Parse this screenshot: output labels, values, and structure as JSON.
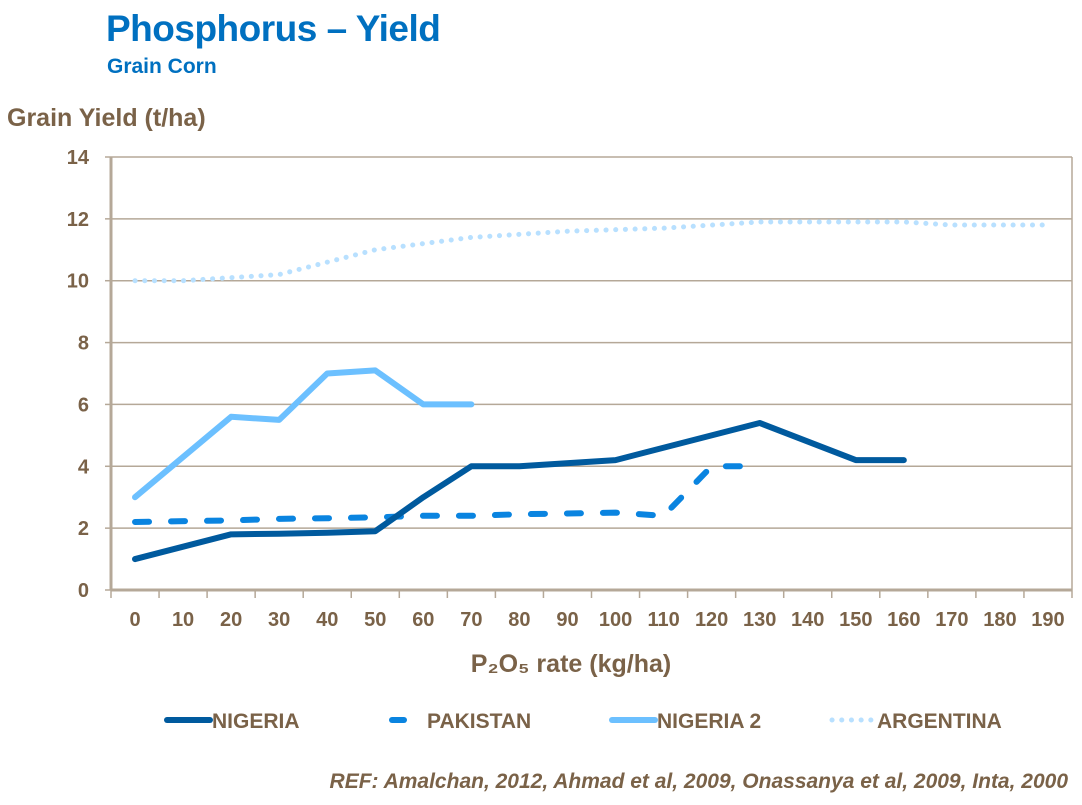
{
  "chart_data": {
    "type": "line",
    "title": "Phosphorus – Yield",
    "subtitle": "Grain Corn",
    "ylabel": "Grain Yield (t/ha)",
    "xlabel": "P₂O₅ rate (kg/ha)",
    "reference": "REF: Amalchan, 2012, Ahmad et al, 2009, Onassanya et al, 2009, Inta, 2000",
    "ylim": [
      0,
      14
    ],
    "yticks": [
      0,
      2,
      4,
      6,
      8,
      10,
      12,
      14
    ],
    "grid": true,
    "legend": "bottom",
    "categories": [
      "0",
      "10",
      "20",
      "30",
      "40",
      "50",
      "60",
      "70",
      "80",
      "90",
      "100",
      "110",
      "120",
      "130",
      "140",
      "150",
      "160",
      "170",
      "180",
      "190"
    ],
    "series": [
      {
        "name": "NIGERIA",
        "color": "#005A9E",
        "style": "solid",
        "values": [
          1.0,
          null,
          1.8,
          1.82,
          1.85,
          1.9,
          3.0,
          4.0,
          4.0,
          null,
          4.2,
          null,
          null,
          5.4,
          null,
          4.2,
          4.2,
          null,
          null,
          null
        ]
      },
      {
        "name": "PAKISTAN",
        "color": "#0A84E0",
        "style": "dashed",
        "values": [
          2.2,
          null,
          2.25,
          2.3,
          2.32,
          2.35,
          2.4,
          2.4,
          2.45,
          null,
          2.5,
          2.4,
          4.0,
          4.0,
          null,
          null,
          null,
          null,
          null,
          null
        ]
      },
      {
        "name": "NIGERIA 2",
        "color": "#6CC0FF",
        "style": "solid",
        "values": [
          3.0,
          null,
          5.6,
          5.5,
          7.0,
          7.1,
          6.0,
          6.0,
          null,
          null,
          null,
          null,
          null,
          null,
          null,
          null,
          null,
          null,
          null,
          null
        ]
      },
      {
        "name": "ARGENTINA",
        "color": "#B8E0FF",
        "style": "dotted",
        "values": [
          10.0,
          10.0,
          10.1,
          10.2,
          10.6,
          11.0,
          11.2,
          11.4,
          11.5,
          11.6,
          11.65,
          11.7,
          11.8,
          11.9,
          11.9,
          11.9,
          11.9,
          11.8,
          11.8,
          11.8
        ]
      }
    ]
  }
}
